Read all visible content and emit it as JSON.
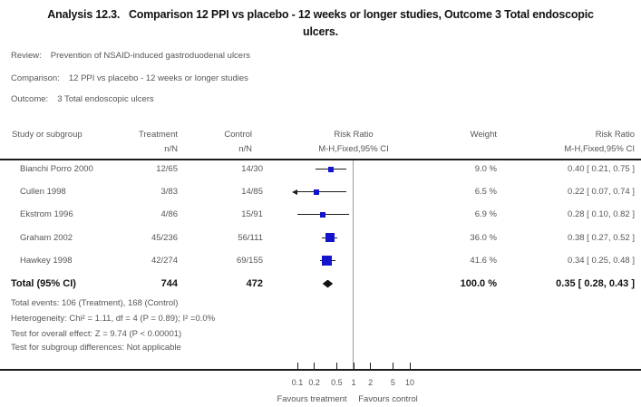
{
  "title": {
    "line1": "Analysis 12.3.   Comparison 12 PPI vs placebo - 12 weeks or longer studies, Outcome 3 Total endoscopic",
    "line2": "ulcers."
  },
  "meta": {
    "review_label": "Review:",
    "review": "Prevention of NSAID-induced gastroduodenal ulcers",
    "comparison_label": "Comparison:",
    "comparison": "12 PPI vs placebo - 12 weeks or longer studies",
    "outcome_label": "Outcome:",
    "outcome": "3 Total endoscopic ulcers"
  },
  "header": {
    "study": "Study or subgroup",
    "treatment": "Treatment",
    "treatment_sub": "n/N",
    "control": "Control",
    "control_sub": "n/N",
    "risk_ratio": "Risk Ratio",
    "risk_ratio_sub": "M-H,Fixed,95% CI",
    "weight": "Weight",
    "risk_ratio_right": "Risk Ratio",
    "risk_ratio_right_sub": "M-H,Fixed,95% CI"
  },
  "chart_data": {
    "type": "forest",
    "effect_measure": "Risk Ratio, M-H, Fixed, 95% CI",
    "x_scale": "log",
    "axis_ticks": [
      0.1,
      0.2,
      0.5,
      1,
      2,
      5,
      10
    ],
    "axis_range": [
      0.1,
      10
    ],
    "favours_left": "Favours treatment",
    "favours_right": "Favours control",
    "marker_color": "#1414cc",
    "studies": [
      {
        "study": "Bianchi Porro 2000",
        "treatment": "12/65",
        "control": "14/30",
        "rr": 0.4,
        "ci_low": 0.21,
        "ci_high": 0.75,
        "weight": 9.0,
        "weight_text": "9.0 %",
        "rr_text": "0.40 [ 0.21, 0.75 ]"
      },
      {
        "study": "Cullen 1998",
        "treatment": "3/83",
        "control": "14/85",
        "rr": 0.22,
        "ci_low": 0.07,
        "ci_high": 0.74,
        "weight": 6.5,
        "weight_text": "6.5 %",
        "rr_text": "0.22 [ 0.07, 0.74 ]"
      },
      {
        "study": "Ekstrom 1996",
        "treatment": "4/86",
        "control": "15/91",
        "rr": 0.28,
        "ci_low": 0.1,
        "ci_high": 0.82,
        "weight": 6.9,
        "weight_text": "6.9 %",
        "rr_text": "0.28 [ 0.10, 0.82 ]"
      },
      {
        "study": "Graham 2002",
        "treatment": "45/236",
        "control": "56/111",
        "rr": 0.38,
        "ci_low": 0.27,
        "ci_high": 0.52,
        "weight": 36.0,
        "weight_text": "36.0 %",
        "rr_text": "0.38 [ 0.27, 0.52 ]"
      },
      {
        "study": "Hawkey 1998",
        "treatment": "42/274",
        "control": "69/155",
        "rr": 0.34,
        "ci_low": 0.25,
        "ci_high": 0.48,
        "weight": 41.6,
        "weight_text": "41.6 %",
        "rr_text": "0.34 [ 0.25, 0.48 ]"
      }
    ],
    "total": {
      "label": "Total (95% CI)",
      "treatment": "744",
      "control": "472",
      "rr": 0.35,
      "ci_low": 0.28,
      "ci_high": 0.43,
      "weight_text": "100.0 %",
      "rr_text": "0.35 [ 0.28, 0.43 ]"
    }
  },
  "footnotes": [
    "Total events: 106 (Treatment), 168 (Control)",
    "Heterogeneity: Chi² = 1.11, df = 4 (P = 0.89); I² =0.0%",
    "Test for overall effect: Z = 9.74 (P < 0.00001)",
    "Test for subgroup differences: Not applicable"
  ]
}
